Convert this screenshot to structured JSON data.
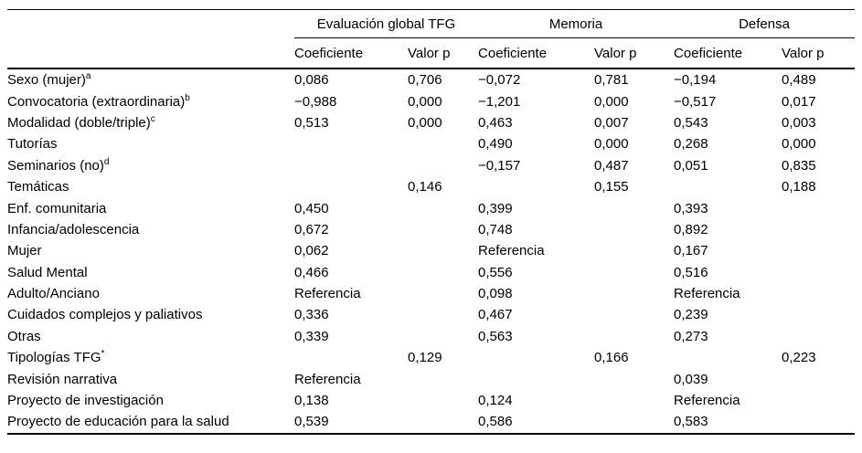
{
  "colors": {
    "background": "#ffffff",
    "text": "#000000",
    "rule": "#000000"
  },
  "table": {
    "groups": [
      {
        "label": "Evaluación global TFG"
      },
      {
        "label": "Memoria"
      },
      {
        "label": "Defensa"
      }
    ],
    "subheaders": [
      "Coeficiente",
      "Valor p",
      "Coeficiente",
      "Valor p",
      "Coeficiente",
      "Valor p"
    ],
    "rows": [
      {
        "label": "Sexo (mujer)",
        "sup": "a",
        "cells": [
          "0,086",
          "0,706",
          "−0,072",
          "0,781",
          "−0,194",
          "0,489"
        ]
      },
      {
        "label": "Convocatoria (extraordinaria)",
        "sup": "b",
        "cells": [
          "−0,988",
          "0,000",
          "−1,201",
          "0,000",
          "−0,517",
          "0,017"
        ]
      },
      {
        "label": "Modalidad (doble/triple)",
        "sup": "c",
        "cells": [
          "0,513",
          "0,000",
          "0,463",
          "0,007",
          "0,543",
          "0,003"
        ]
      },
      {
        "label": "Tutorías",
        "sup": "",
        "cells": [
          "",
          "",
          "0,490",
          "0,000",
          "0,268",
          "0,000"
        ]
      },
      {
        "label": "Seminarios (no)",
        "sup": "d",
        "cells": [
          "",
          "",
          "−0,157",
          "0,487",
          "0,051",
          "0,835"
        ]
      },
      {
        "label": "Temáticas",
        "sup": "",
        "cells": [
          "",
          "0,146",
          "",
          "0,155",
          "",
          "0,188"
        ]
      },
      {
        "label": "Enf. comunitaria",
        "sup": "",
        "cells": [
          "0,450",
          "",
          "0,399",
          "",
          "0,393",
          ""
        ]
      },
      {
        "label": "Infancia/adolescencia",
        "sup": "",
        "cells": [
          "0,672",
          "",
          "0,748",
          "",
          "0,892",
          ""
        ]
      },
      {
        "label": "Mujer",
        "sup": "",
        "cells": [
          "0,062",
          "",
          "Referencia",
          "",
          "0,167",
          ""
        ]
      },
      {
        "label": "Salud Mental",
        "sup": "",
        "cells": [
          "0,466",
          "",
          "0,556",
          "",
          "0,516",
          ""
        ]
      },
      {
        "label": "Adulto/Anciano",
        "sup": "",
        "cells": [
          "Referencia",
          "",
          "0,098",
          "",
          "Referencia",
          ""
        ]
      },
      {
        "label": "Cuidados complejos y paliativos",
        "sup": "",
        "cells": [
          "0,336",
          "",
          "0,467",
          "",
          "0,239",
          ""
        ]
      },
      {
        "label": "Otras",
        "sup": "",
        "cells": [
          "0,339",
          "",
          "0,563",
          "",
          "0,273",
          ""
        ]
      },
      {
        "label": "Tipologías TFG",
        "sup": "*",
        "cells": [
          "",
          "0,129",
          "",
          "0,166",
          "",
          "0,223"
        ]
      },
      {
        "label": "Revisión narrativa",
        "sup": "",
        "cells": [
          "Referencia",
          "",
          "",
          "",
          "0,039",
          ""
        ]
      },
      {
        "label": "Proyecto de investigación",
        "sup": "",
        "cells": [
          "0,138",
          "",
          "0,124",
          "",
          "Referencia",
          ""
        ]
      },
      {
        "label": "Proyecto de educación para la salud",
        "sup": "",
        "cells": [
          "0,539",
          "",
          "0,586",
          "",
          "0,583",
          ""
        ]
      }
    ]
  }
}
